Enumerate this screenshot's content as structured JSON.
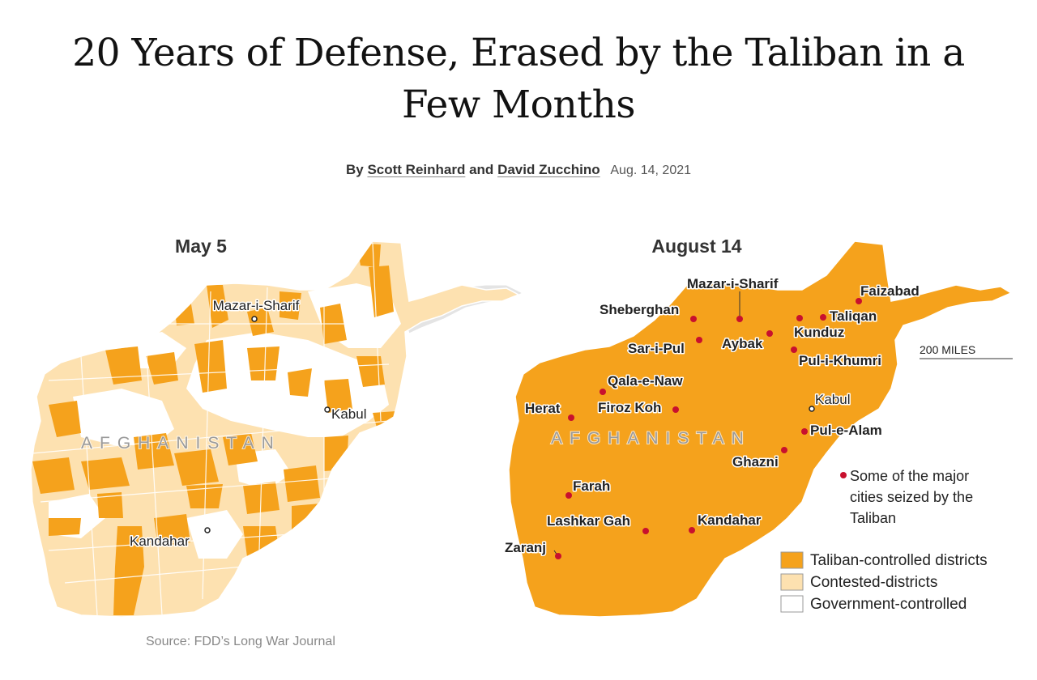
{
  "headline": "20 Years of Defense, Erased by the Taliban in a Few Months",
  "byline": {
    "prefix": "By",
    "author1": "Scott Reinhard",
    "joiner": "and",
    "author2": "David Zucchino",
    "date": "Aug. 14, 2021"
  },
  "colors": {
    "taliban": "#f5a21c",
    "contested": "#fde1b0",
    "government": "#ffffff",
    "city_seized": "#c8102e",
    "border": "#ffffff",
    "terrain": "#e6e6e6"
  },
  "maps": [
    {
      "title": "May 5",
      "country_label": "AFGHANISTAN",
      "cities": [
        {
          "name": "Mazar-i-Sharif",
          "status": "government"
        },
        {
          "name": "Kabul",
          "status": "government"
        },
        {
          "name": "Kandahar",
          "status": "government"
        }
      ]
    },
    {
      "title": "August 14",
      "country_label": "AFGHANISTAN",
      "cities": [
        {
          "name": "Mazar-i-Sharif",
          "status": "seized"
        },
        {
          "name": "Faizabad",
          "status": "seized"
        },
        {
          "name": "Sheberghan",
          "status": "seized"
        },
        {
          "name": "Taliqan",
          "status": "seized"
        },
        {
          "name": "Kunduz",
          "status": "seized"
        },
        {
          "name": "Sar-i-Pul",
          "status": "seized"
        },
        {
          "name": "Aybak",
          "status": "seized"
        },
        {
          "name": "Pul-i-Khumri",
          "status": "seized"
        },
        {
          "name": "Qala-e-Naw",
          "status": "seized"
        },
        {
          "name": "Herat",
          "status": "seized"
        },
        {
          "name": "Firoz Koh",
          "status": "seized"
        },
        {
          "name": "Kabul",
          "status": "government"
        },
        {
          "name": "Pul-e-Alam",
          "status": "seized"
        },
        {
          "name": "Ghazni",
          "status": "seized"
        },
        {
          "name": "Farah",
          "status": "seized"
        },
        {
          "name": "Lashkar Gah",
          "status": "seized"
        },
        {
          "name": "Kandahar",
          "status": "seized"
        },
        {
          "name": "Zaranj",
          "status": "seized"
        }
      ],
      "scale_label": "200 MILES",
      "note": [
        "Some of the major",
        "cities seized by the",
        "Taliban"
      ]
    }
  ],
  "legend": [
    {
      "label": "Taliban-controlled districts",
      "color": "#f5a21c"
    },
    {
      "label": "Contested-districts",
      "color": "#fde1b0"
    },
    {
      "label": "Government-controlled",
      "color": "#ffffff"
    }
  ],
  "source": "Source: FDD’s Long War Journal"
}
